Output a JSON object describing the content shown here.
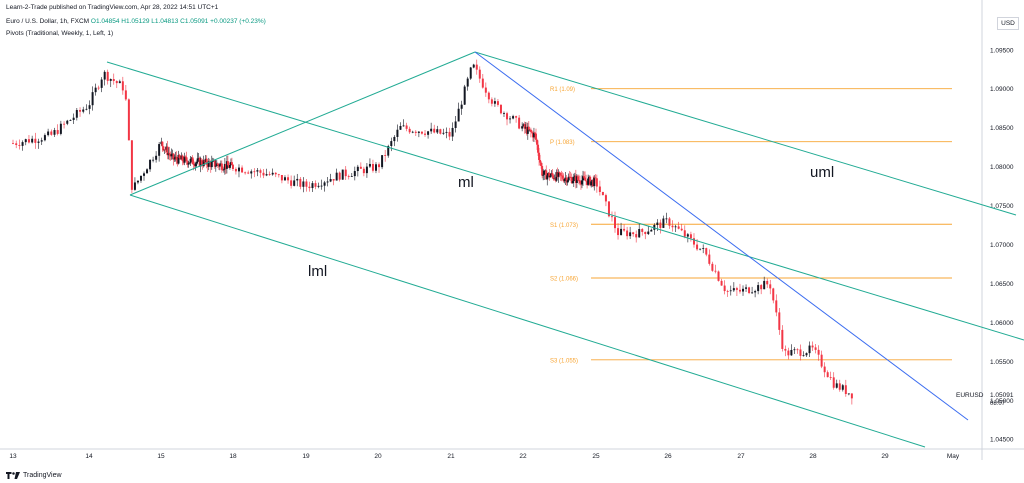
{
  "header": {
    "publish_line": "Learn-2-Trade published on TradingView.com, Apr 28, 2022 14:51 UTC+1",
    "symbol_name": "Euro / U.S. Dollar, 1h, FXCM",
    "ohlc": "O1.04854 H1.05129 L1.04813 C1.05091 +0.00237 (+0.23%)",
    "pivots_line": "Pivots (Traditional, Weekly, 1, Left, 1)",
    "currency": "USD"
  },
  "footer": {
    "brand": "TradingView",
    "logo_icon": "tradingview-logo-icon"
  },
  "colors": {
    "up_candle": "#131722",
    "down_candle": "#f23645",
    "pivot_line": "#f7a534",
    "channel_line": "#22ab94",
    "trend_line": "#3c6df0",
    "grid": "#eef0f3",
    "axis_text": "#131722"
  },
  "chart_data": {
    "type": "candlestick",
    "symbol": "EURUSD",
    "last_price": "1.05091",
    "countdown": "08:07",
    "ylim": [
      1.044,
      1.096
    ],
    "y_ticks": [
      "1.09500",
      "1.09000",
      "1.08500",
      "1.08000",
      "1.07500",
      "1.07000",
      "1.06500",
      "1.06000",
      "1.05500",
      "1.05000",
      "1.04500"
    ],
    "x_ticks": [
      "13",
      "14",
      "15",
      "18",
      "19",
      "20",
      "21",
      "22",
      "25",
      "26",
      "27",
      "28",
      "29",
      "May"
    ],
    "grid": false,
    "pivots": [
      {
        "label": "R1 (1.09)",
        "value": 1.09
      },
      {
        "label": "P (1.083)",
        "value": 1.0832
      },
      {
        "label": "S1 (1.073)",
        "value": 1.0726
      },
      {
        "label": "S2 (1.066)",
        "value": 1.0657
      },
      {
        "label": "S3 (1.055)",
        "value": 1.0552
      }
    ],
    "annotations": [
      "uml",
      "ml",
      "lml"
    ],
    "price_path": [
      [
        "13",
        1.083
      ],
      [
        "13.5",
        1.084
      ],
      [
        "14",
        1.088
      ],
      [
        "14.2",
        1.092
      ],
      [
        "14.5",
        1.09
      ],
      [
        "14.6",
        1.077
      ],
      [
        "15",
        1.083
      ],
      [
        "15.5",
        1.081
      ],
      [
        "18",
        1.08
      ],
      [
        "18.5",
        1.079
      ],
      [
        "19",
        1.0775
      ],
      [
        "19.5",
        1.079
      ],
      [
        "20",
        1.08
      ],
      [
        "20.3",
        1.085
      ],
      [
        "20.7",
        1.0845
      ],
      [
        "21",
        1.084
      ],
      [
        "21.3",
        1.093
      ],
      [
        "21.6",
        1.088
      ],
      [
        "22",
        1.085
      ],
      [
        "22.5",
        1.084
      ],
      [
        "22.8",
        1.079
      ],
      [
        "25",
        1.078
      ],
      [
        "25.3",
        1.0715
      ],
      [
        "25.6",
        1.0715
      ],
      [
        "26",
        1.073
      ],
      [
        "26.5",
        1.069
      ],
      [
        "26.8",
        1.064
      ],
      [
        "27",
        1.064
      ],
      [
        "27.4",
        1.065
      ],
      [
        "27.6",
        1.056
      ],
      [
        "28",
        1.0565
      ],
      [
        "28.3",
        1.052
      ],
      [
        "28.6",
        1.0505
      ]
    ]
  }
}
